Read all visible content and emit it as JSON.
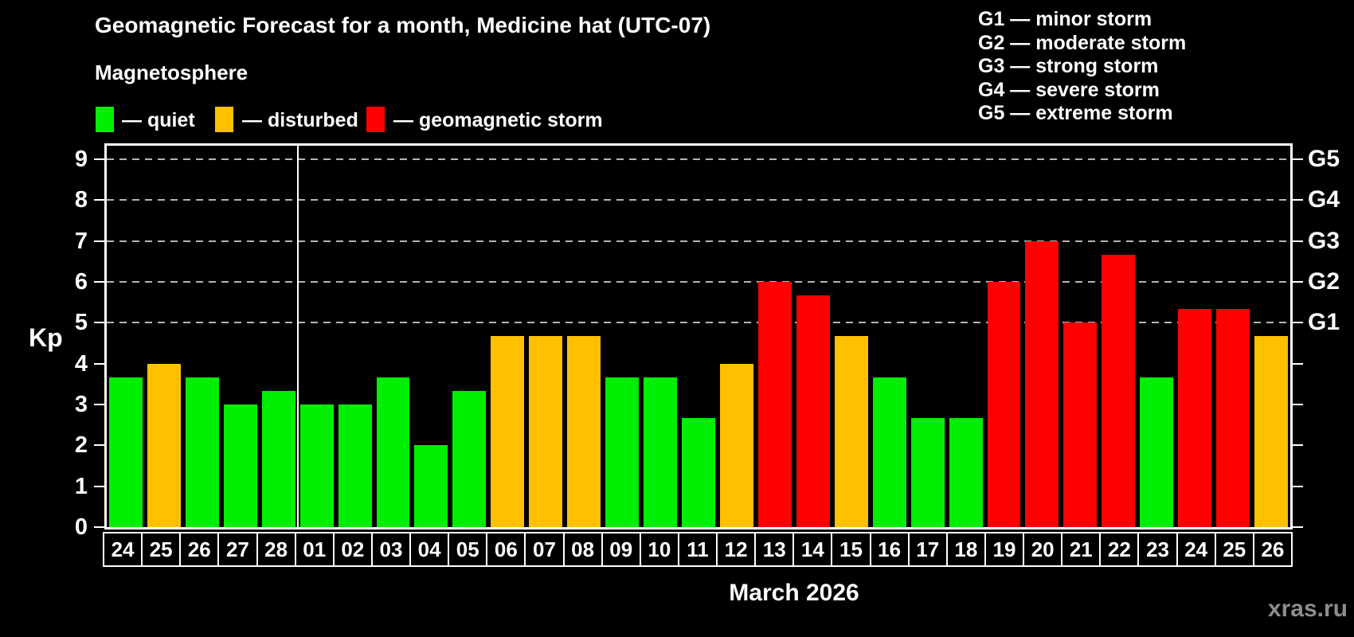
{
  "title": "Geomagnetic Forecast for a month, Medicine hat (UTC-07)",
  "subtitle": "Magnetosphere",
  "legend": {
    "items": [
      {
        "key": "quiet",
        "label": "— quiet",
        "color": "#00ef00"
      },
      {
        "key": "disturbed",
        "label": "— disturbed",
        "color": "#ffc000"
      },
      {
        "key": "storm",
        "label": "— geomagnetic storm",
        "color": "#ff0000"
      }
    ]
  },
  "g_legend": [
    "G1 — minor storm",
    "G2 — moderate storm",
    "G3 — strong storm",
    "G4 — severe storm",
    "G5 — extreme storm"
  ],
  "colors": {
    "quiet": "#00ef00",
    "disturbed": "#ffc000",
    "storm": "#ff0000"
  },
  "watermark": "xras.ru",
  "chart_data": {
    "type": "bar",
    "title": "Geomagnetic Forecast for a month, Medicine hat (UTC-07)",
    "ylabel": "Kp",
    "xlabel": "March 2026",
    "ylim": [
      0,
      9
    ],
    "y_ticks": [
      0,
      1,
      2,
      3,
      4,
      5,
      6,
      7,
      8,
      9
    ],
    "gridlines_at": [
      5,
      6,
      7,
      8,
      9
    ],
    "grid": "dashed-horizontal",
    "legend_position": "top-left",
    "right_axis_labels": [
      {
        "label": "G1",
        "kp": 5
      },
      {
        "label": "G2",
        "kp": 6
      },
      {
        "label": "G3",
        "kp": 7
      },
      {
        "label": "G4",
        "kp": 8
      },
      {
        "label": "G5",
        "kp": 9
      }
    ],
    "categories": [
      "24",
      "25",
      "26",
      "27",
      "28",
      "01",
      "02",
      "03",
      "04",
      "05",
      "06",
      "07",
      "08",
      "09",
      "10",
      "11",
      "12",
      "13",
      "14",
      "15",
      "16",
      "17",
      "18",
      "19",
      "20",
      "21",
      "22",
      "23",
      "24",
      "25",
      "26"
    ],
    "values": [
      3.67,
      4,
      3.67,
      3,
      3.33,
      3,
      3,
      3.67,
      2,
      3.33,
      4.67,
      4.67,
      4.67,
      3.67,
      3.67,
      2.67,
      4,
      6,
      5.67,
      4.67,
      3.67,
      2.67,
      2.67,
      6,
      7,
      5,
      6.67,
      3.67,
      5.33,
      5.33,
      4.67
    ],
    "statuses": [
      "quiet",
      "disturbed",
      "quiet",
      "quiet",
      "quiet",
      "quiet",
      "quiet",
      "quiet",
      "quiet",
      "quiet",
      "disturbed",
      "disturbed",
      "disturbed",
      "quiet",
      "quiet",
      "quiet",
      "disturbed",
      "storm",
      "storm",
      "disturbed",
      "quiet",
      "quiet",
      "quiet",
      "storm",
      "storm",
      "storm",
      "storm",
      "quiet",
      "storm",
      "storm",
      "disturbed"
    ],
    "month_separator_after_index": 4,
    "month_label": "March 2026"
  }
}
